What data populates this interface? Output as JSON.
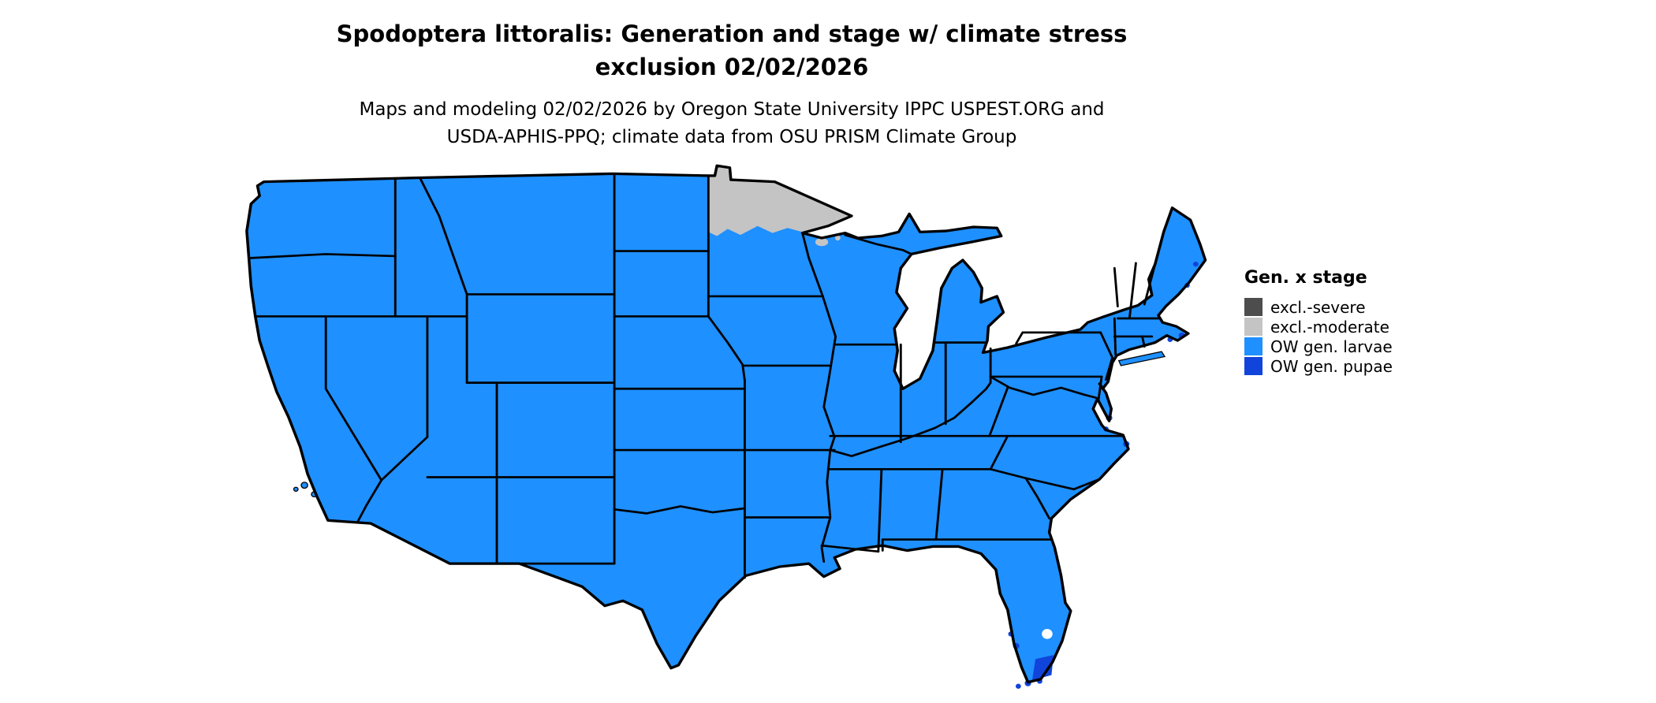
{
  "header": {
    "title_line1": "Spodoptera littoralis: Generation and stage w/ climate stress",
    "title_line2": "exclusion 02/02/2026",
    "subtitle_line1": "Maps and modeling 02/02/2026 by Oregon State University IPPC USPEST.ORG and",
    "subtitle_line2": "USDA-APHIS-PPQ; climate data from OSU PRISM Climate Group"
  },
  "legend": {
    "title": "Gen. x stage",
    "items": [
      {
        "label": "excl.-severe",
        "color": "#4D4D4D"
      },
      {
        "label": "excl.-moderate",
        "color": "#C4C4C4"
      },
      {
        "label": "OW gen. larvae",
        "color": "#1E90FF"
      },
      {
        "label": "OW gen. pupae",
        "color": "#1144DB"
      }
    ]
  },
  "map": {
    "region_fills": {
      "default": "#1E90FF",
      "exclusion_moderate": "#C4C4C4",
      "exclusion_severe": "#4D4D4D",
      "ow_gen_pupae": "#1144DB",
      "water": "#FFFFFF",
      "border": "#000000"
    },
    "regions": [
      {
        "name": "contiguous-united-states",
        "status": "OW gen. larvae"
      },
      {
        "name": "northern-minnesota",
        "status": "excl.-moderate"
      },
      {
        "name": "northern-wisconsin-patch",
        "status": "excl.-moderate"
      },
      {
        "name": "south-florida",
        "status": "OW gen. pupae"
      },
      {
        "name": "atlantic-coast-spots",
        "status": "OW gen. pupae"
      }
    ]
  }
}
